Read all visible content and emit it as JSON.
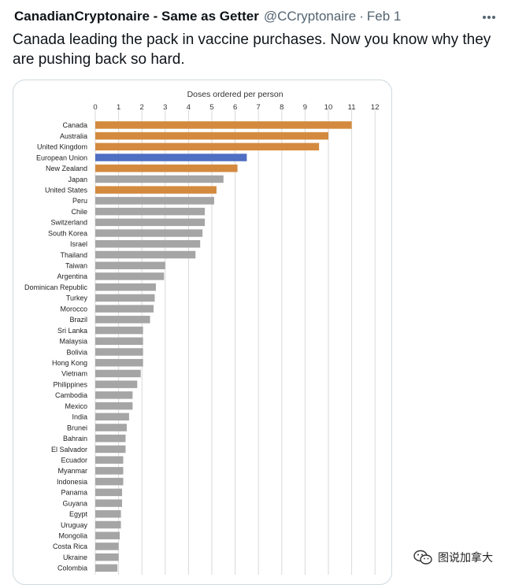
{
  "tweet": {
    "author_name": "CanadianCryptonaire - Same as Getter",
    "author_handle": "@CCryptonaire",
    "separator": "·",
    "date": "Feb 1",
    "text": "Canada leading the pack in vaccine purchases. Now you know why they are pushing back so hard."
  },
  "icons": {
    "more": "more-horizontal-icon",
    "watermark": "wechat-logo-icon"
  },
  "watermark": {
    "text": "图说加拿大"
  },
  "colors": {
    "highlight": "#d48a3e",
    "eu": "#4e6fc2",
    "other": "#a5a5a5",
    "grid": "#d9d9d9"
  },
  "chart_data": {
    "type": "bar",
    "orientation": "horizontal",
    "title": "Doses ordered per person",
    "xlim": [
      0,
      12
    ],
    "x_ticks": [
      0,
      1,
      2,
      3,
      4,
      5,
      6,
      7,
      8,
      9,
      10,
      11,
      12
    ],
    "grid": true,
    "categories": [
      "Canada",
      "Australia",
      "United Kingdom",
      "European Union",
      "New Zealand",
      "Japan",
      "United States",
      "Peru",
      "Chile",
      "Switzerland",
      "South Korea",
      "Israel",
      "Thailand",
      "Taiwan",
      "Argentina",
      "Dominican Republic",
      "Turkey",
      "Morocco",
      "Brazil",
      "Sri Lanka",
      "Malaysia",
      "Bolivia",
      "Hong Kong",
      "Vietnam",
      "Philippines",
      "Cambodia",
      "Mexico",
      "India",
      "Brunei",
      "Bahrain",
      "El Salvador",
      "Ecuador",
      "Myanmar",
      "Indonesia",
      "Panama",
      "Guyana",
      "Egypt",
      "Uruguay",
      "Mongolia",
      "Costa Rica",
      "Ukraine",
      "Colombia"
    ],
    "values": [
      11.0,
      10.0,
      9.6,
      6.5,
      6.1,
      5.5,
      5.2,
      5.1,
      4.7,
      4.7,
      4.6,
      4.5,
      4.3,
      3.0,
      2.95,
      2.6,
      2.55,
      2.5,
      2.35,
      2.05,
      2.05,
      2.05,
      2.05,
      1.95,
      1.8,
      1.6,
      1.6,
      1.45,
      1.35,
      1.3,
      1.3,
      1.2,
      1.2,
      1.2,
      1.15,
      1.15,
      1.1,
      1.1,
      1.05,
      1.0,
      1.0,
      0.95
    ],
    "bar_groups": [
      "highlight",
      "highlight",
      "highlight",
      "eu",
      "highlight",
      "other",
      "highlight",
      "other",
      "other",
      "other",
      "other",
      "other",
      "other",
      "other",
      "other",
      "other",
      "other",
      "other",
      "other",
      "other",
      "other",
      "other",
      "other",
      "other",
      "other",
      "other",
      "other",
      "other",
      "other",
      "other",
      "other",
      "other",
      "other",
      "other",
      "other",
      "other",
      "other",
      "other",
      "other",
      "other",
      "other",
      "other"
    ]
  }
}
